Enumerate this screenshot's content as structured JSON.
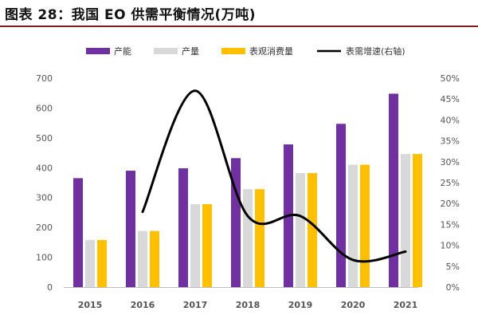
{
  "title": "图表 28：我国 EO 供需平衡情况(万吨)",
  "chart_data": {
    "type": "bar",
    "title": "图表 28：我国 EO 供需平衡情况(万吨)",
    "categories": [
      "2015",
      "2016",
      "2017",
      "2018",
      "2019",
      "2020",
      "2021"
    ],
    "series": [
      {
        "name": "产能",
        "type": "bar",
        "axis": "left",
        "color": "#7030a0",
        "values": [
          365,
          390,
          398,
          432,
          478,
          547,
          648
        ]
      },
      {
        "name": "产量",
        "type": "bar",
        "axis": "left",
        "color": "#d9d9d9",
        "values": [
          158,
          188,
          278,
          328,
          382,
          410,
          446
        ]
      },
      {
        "name": "表观消费量",
        "type": "bar",
        "axis": "left",
        "color": "#ffc000",
        "values": [
          158,
          188,
          278,
          328,
          382,
          410,
          446
        ]
      },
      {
        "name": "表需增速(右轴)",
        "type": "line",
        "axis": "right",
        "color": "#000000",
        "values": [
          null,
          0.18,
          0.47,
          0.17,
          0.17,
          0.065,
          0.085
        ]
      }
    ],
    "y_left": {
      "min": 0,
      "max": 700,
      "step": 100,
      "ticks": [
        "0",
        "100",
        "200",
        "300",
        "400",
        "500",
        "600",
        "700"
      ]
    },
    "y_right": {
      "min": 0,
      "max": 0.5,
      "step": 0.05,
      "ticks": [
        "0%",
        "5%",
        "10%",
        "15%",
        "20%",
        "25%",
        "30%",
        "35%",
        "40%",
        "45%",
        "50%"
      ]
    },
    "legend_position": "top",
    "grid": false
  }
}
